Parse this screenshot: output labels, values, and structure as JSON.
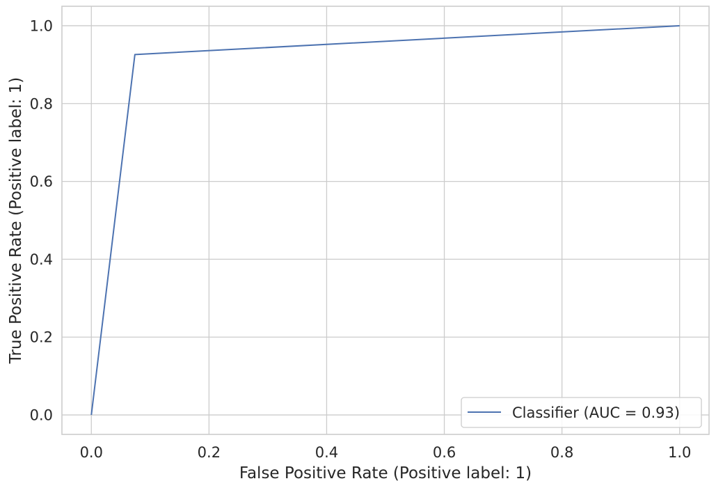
{
  "chart_data": {
    "type": "line",
    "title": "",
    "xlabel": "False Positive Rate (Positive label: 1)",
    "ylabel": "True Positive Rate (Positive label: 1)",
    "xlim": [
      -0.05,
      1.05
    ],
    "ylim": [
      -0.05,
      1.05
    ],
    "xticks": [
      "0.0",
      "0.2",
      "0.4",
      "0.6",
      "0.8",
      "1.0"
    ],
    "yticks": [
      "0.0",
      "0.2",
      "0.4",
      "0.6",
      "0.8",
      "1.0"
    ],
    "grid": true,
    "legend_position": "lower-right",
    "series": [
      {
        "name": "Classifier (AUC = 0.93)",
        "color": "#4c72b0",
        "x": [
          0.0,
          0.074,
          1.0
        ],
        "y": [
          0.0,
          0.926,
          1.0
        ]
      }
    ]
  },
  "colors": {
    "grid": "#cccccc",
    "spine": "#cccccc",
    "background": "#ffffff",
    "text": "#262626"
  }
}
